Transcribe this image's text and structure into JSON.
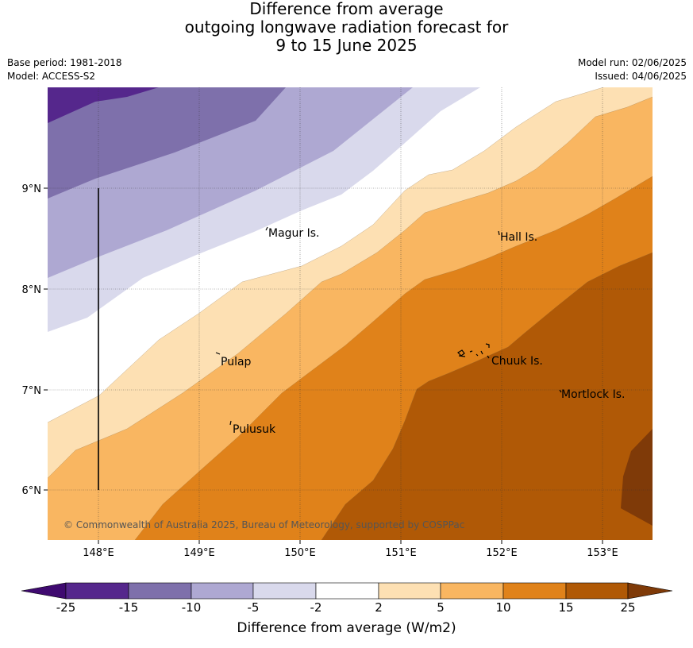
{
  "title": {
    "line1": "Difference from average",
    "line2": "outgoing longwave radiation forecast for",
    "line3": "9 to 15 June 2025"
  },
  "meta": {
    "base_period": "Base period: 1981-2018",
    "model": "Model: ACCESS-S2",
    "model_run": "Model run: 02/06/2025",
    "issued": "Issued: 04/06/2025"
  },
  "map": {
    "lon_ticks": [
      "148°E",
      "149°E",
      "150°E",
      "151°E",
      "152°E",
      "153°E"
    ],
    "lat_ticks": [
      "9°N",
      "8°N",
      "7°N",
      "6°N"
    ],
    "places": {
      "magur": "Magur Is.",
      "hall": "Hall Is.",
      "pulap": "Pulap",
      "chuuk": "Chuuk Is.",
      "mortlock": "Mortlock Is.",
      "pulusuk": "Pulusuk"
    },
    "copyright": "© Commonwealth of Australia 2025, Bureau of Meteorology, supported by COSPPac"
  },
  "colorbar": {
    "labels": [
      "-25",
      "-15",
      "-10",
      "-5",
      "-2",
      "2",
      "5",
      "10",
      "15",
      "25"
    ],
    "colors": [
      "#3f0a70",
      "#55278c",
      "#7e70ab",
      "#aea8d2",
      "#d9d9ec",
      "#ffffff",
      "#fde0b3",
      "#f9b661",
      "#e0821a",
      "#b05906",
      "#7f3a08"
    ],
    "title": "Difference from average (W/m2)"
  }
}
